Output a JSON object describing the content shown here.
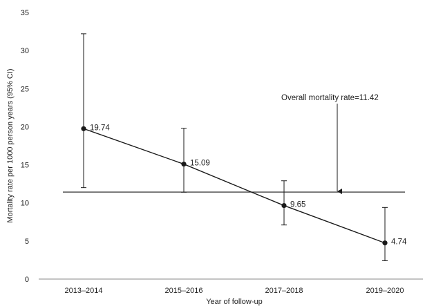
{
  "chart_data": {
    "type": "line",
    "title": "",
    "xlabel": "Year of follow-up",
    "ylabel": "Mortality rate per 1000 person years (95% CI)",
    "categories": [
      "2013–2014",
      "2015–2016",
      "2017–2018",
      "2019–2020"
    ],
    "series": [
      {
        "values": [
          19.74,
          15.09,
          9.65,
          4.74
        ],
        "ci_lower": [
          12.0,
          11.4,
          7.1,
          2.4
        ],
        "ci_upper": [
          32.2,
          19.8,
          12.9,
          9.4
        ],
        "data_labels": [
          "19.74",
          "15.09",
          "9.65",
          "4.74"
        ]
      }
    ],
    "ylim": [
      0,
      35
    ],
    "yticks": [
      0,
      5,
      10,
      15,
      20,
      25,
      30,
      35
    ],
    "ytick_labels": [
      "0",
      "5",
      "10",
      "15",
      "20",
      "25",
      "30",
      "35"
    ],
    "grid": false,
    "reference_line": {
      "value": 11.42,
      "label": "Overall mortality rate=11.42",
      "arrow_between_categories": [
        "2017–2018",
        "2019–2020"
      ]
    },
    "colors": {
      "line": "#1a1a1a",
      "text": "#222222",
      "axis": "#888888"
    }
  }
}
